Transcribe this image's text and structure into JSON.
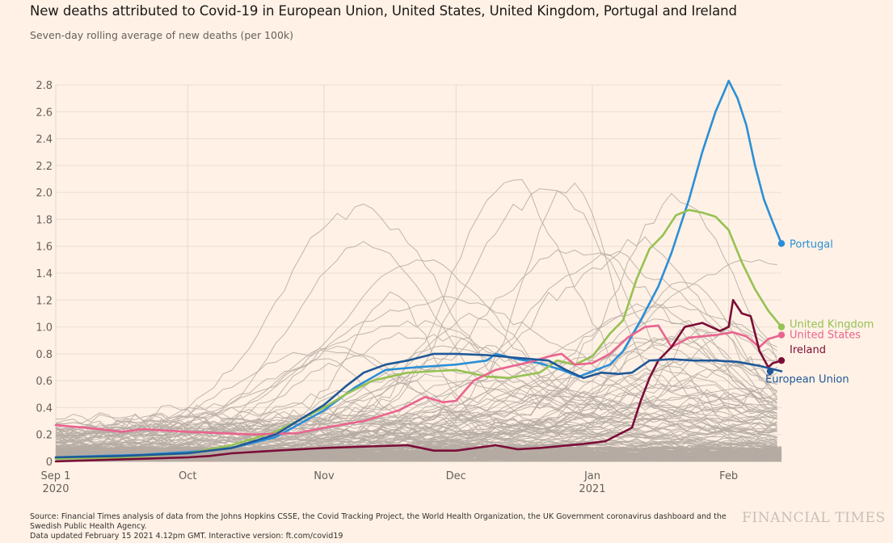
{
  "header": {
    "title": "New deaths attributed to Covid-19 in European Union, United States, United Kingdom, Portugal and Ireland",
    "subtitle": "Seven-day rolling average of new deaths (per 100k)"
  },
  "footer": {
    "source_line1": "Source: Financial Times analysis of data from the Johns Hopkins CSSE, the Covid Tracking Project, the World Health Organization, the UK Government coronavirus dashboard and the",
    "source_line2": "Swedish Public Health Agency.",
    "source_line3": "Data updated February 15 2021 4.12pm GMT. Interactive version: ft.com/covid19",
    "brand": "FINANCIAL TIMES"
  },
  "chart_data": {
    "type": "line",
    "title": "New deaths attributed to Covid-19 in European Union, United States, United Kingdom, Portugal and Ireland",
    "subtitle": "Seven-day rolling average of new deaths (per 100k)",
    "xlabel": "",
    "ylabel": "",
    "x_unit": "days since 2020-09-01",
    "xlim": [
      0,
      165
    ],
    "ylim": [
      0,
      2.8
    ],
    "grid": true,
    "y_ticks": [
      {
        "value": 0,
        "label": "0"
      },
      {
        "value": 0.2,
        "label": "0.2"
      },
      {
        "value": 0.4,
        "label": "0.4"
      },
      {
        "value": 0.6,
        "label": "0.6"
      },
      {
        "value": 0.8,
        "label": "0.8"
      },
      {
        "value": 1.0,
        "label": "1.0"
      },
      {
        "value": 1.2,
        "label": "1.2"
      },
      {
        "value": 1.4,
        "label": "1.4"
      },
      {
        "value": 1.6,
        "label": "1.6"
      },
      {
        "value": 1.8,
        "label": "1.8"
      },
      {
        "value": 2.0,
        "label": "2.0"
      },
      {
        "value": 2.2,
        "label": "2.2"
      },
      {
        "value": 2.4,
        "label": "2.4"
      },
      {
        "value": 2.6,
        "label": "2.6"
      },
      {
        "value": 2.8,
        "label": "2.8"
      }
    ],
    "x_ticks": [
      {
        "day": 0,
        "label": "Sep 1",
        "sublabel": "2020"
      },
      {
        "day": 30,
        "label": "Oct",
        "sublabel": ""
      },
      {
        "day": 61,
        "label": "Nov",
        "sublabel": ""
      },
      {
        "day": 91,
        "label": "Dec",
        "sublabel": ""
      },
      {
        "day": 122,
        "label": "Jan",
        "sublabel": "2021"
      },
      {
        "day": 153,
        "label": "Feb",
        "sublabel": ""
      }
    ],
    "background_series": {
      "description": "Other countries/regions shown as thin grey lines",
      "color": "#b5aba3",
      "count": 90
    },
    "series": [
      {
        "name": "Portugal",
        "color": "#2b8fd6",
        "x": [
          0,
          10,
          20,
          30,
          40,
          50,
          61,
          68,
          75,
          82,
          91,
          98,
          100,
          105,
          110,
          115,
          119,
          122,
          126,
          129,
          133,
          137,
          140,
          144,
          147,
          150,
          152,
          153,
          155,
          157,
          159,
          161,
          163,
          165
        ],
        "y": [
          0.03,
          0.04,
          0.05,
          0.07,
          0.1,
          0.18,
          0.38,
          0.55,
          0.68,
          0.7,
          0.72,
          0.75,
          0.8,
          0.76,
          0.73,
          0.68,
          0.63,
          0.67,
          0.72,
          0.82,
          1.05,
          1.3,
          1.55,
          1.95,
          2.3,
          2.6,
          2.75,
          2.83,
          2.7,
          2.5,
          2.2,
          1.95,
          1.78,
          1.62
        ]
      },
      {
        "name": "United Kingdom",
        "color": "#96c153",
        "x": [
          0,
          15,
          30,
          40,
          50,
          61,
          66,
          72,
          80,
          91,
          98,
          103,
          110,
          114,
          118,
          122,
          126,
          129,
          132,
          135,
          138,
          141,
          144,
          147,
          150,
          153,
          156,
          159,
          162,
          165
        ],
        "y": [
          0.02,
          0.03,
          0.06,
          0.12,
          0.22,
          0.4,
          0.5,
          0.6,
          0.66,
          0.68,
          0.63,
          0.62,
          0.66,
          0.75,
          0.72,
          0.78,
          0.95,
          1.05,
          1.35,
          1.58,
          1.68,
          1.83,
          1.87,
          1.85,
          1.82,
          1.72,
          1.48,
          1.28,
          1.12,
          1.0
        ]
      },
      {
        "name": "United States",
        "color": "#e9648f",
        "x": [
          0,
          10,
          15,
          20,
          30,
          45,
          55,
          61,
          70,
          78,
          84,
          88,
          91,
          95,
          100,
          108,
          112,
          115,
          118,
          122,
          126,
          130,
          134,
          137,
          140,
          144,
          150,
          154,
          157,
          160,
          162,
          165
        ],
        "y": [
          0.27,
          0.24,
          0.22,
          0.24,
          0.22,
          0.2,
          0.21,
          0.25,
          0.3,
          0.38,
          0.48,
          0.44,
          0.45,
          0.6,
          0.68,
          0.74,
          0.78,
          0.8,
          0.72,
          0.73,
          0.8,
          0.92,
          1.0,
          1.01,
          0.85,
          0.92,
          0.94,
          0.96,
          0.93,
          0.85,
          0.91,
          0.94
        ]
      },
      {
        "name": "Ireland",
        "color": "#7b0d37",
        "x": [
          0,
          10,
          20,
          30,
          35,
          40,
          50,
          61,
          70,
          80,
          86,
          91,
          100,
          105,
          110,
          120,
          125,
          128,
          131,
          133,
          135,
          137,
          140,
          143,
          147,
          151,
          153,
          154,
          156,
          158,
          160,
          162,
          163,
          165
        ],
        "y": [
          0.0,
          0.01,
          0.02,
          0.03,
          0.04,
          0.06,
          0.08,
          0.1,
          0.11,
          0.12,
          0.08,
          0.08,
          0.12,
          0.09,
          0.1,
          0.13,
          0.15,
          0.2,
          0.25,
          0.45,
          0.62,
          0.75,
          0.85,
          1.0,
          1.03,
          0.97,
          1.0,
          1.2,
          1.1,
          1.08,
          0.82,
          0.7,
          0.73,
          0.75
        ]
      },
      {
        "name": "European Union",
        "color": "#1e5899",
        "x": [
          0,
          15,
          30,
          40,
          50,
          55,
          61,
          66,
          70,
          75,
          80,
          86,
          91,
          98,
          105,
          112,
          116,
          120,
          124,
          128,
          131,
          135,
          140,
          145,
          150,
          155,
          160,
          165
        ],
        "y": [
          0.03,
          0.04,
          0.06,
          0.1,
          0.2,
          0.3,
          0.42,
          0.56,
          0.66,
          0.72,
          0.75,
          0.8,
          0.8,
          0.79,
          0.77,
          0.75,
          0.68,
          0.62,
          0.66,
          0.65,
          0.66,
          0.75,
          0.76,
          0.75,
          0.75,
          0.74,
          0.71,
          0.67
        ]
      }
    ]
  }
}
